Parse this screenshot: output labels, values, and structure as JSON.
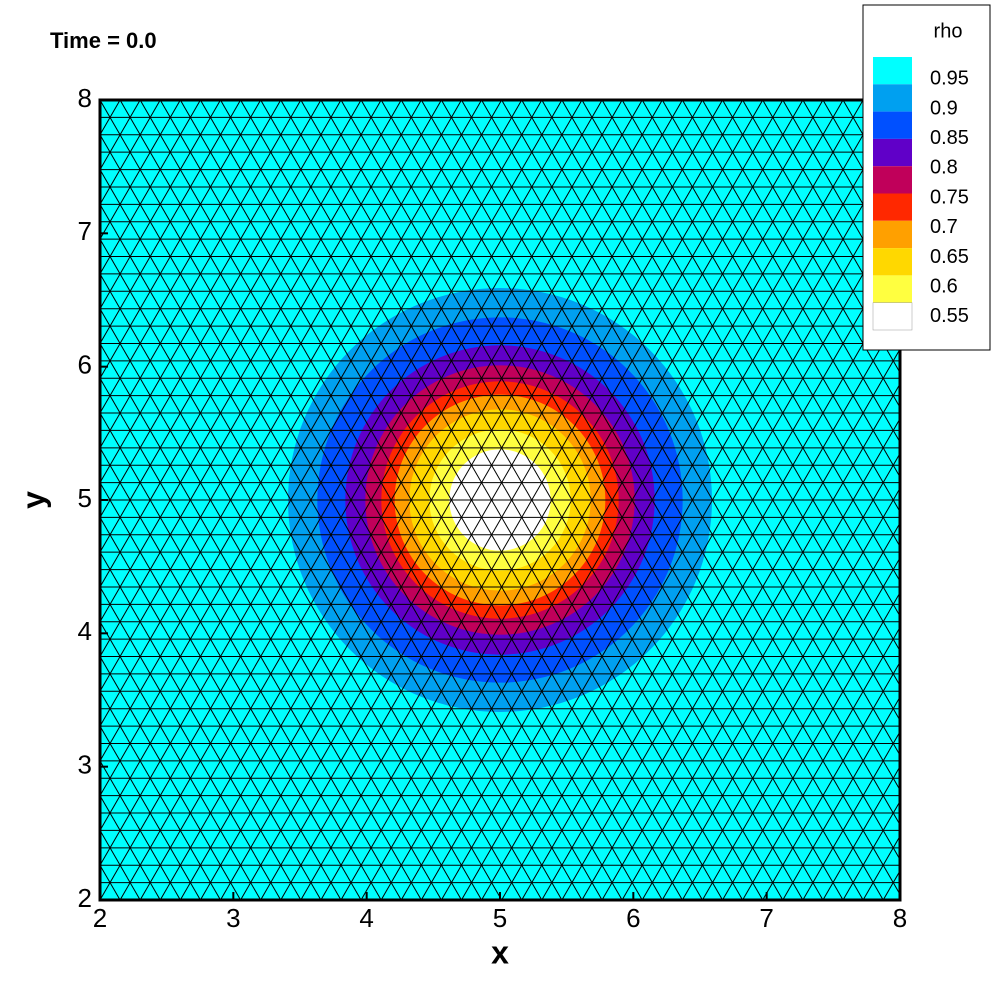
{
  "chart_data": {
    "type": "contour",
    "title": "Time = 0.0",
    "x_label": "x",
    "y_label": "y",
    "xlim": [
      2,
      8
    ],
    "ylim": [
      2,
      8
    ],
    "xticks": [
      2,
      3,
      4,
      5,
      6,
      7,
      8
    ],
    "yticks": [
      2,
      3,
      4,
      5,
      6,
      7,
      8
    ],
    "center": [
      5,
      5
    ],
    "legend_title": "rho",
    "levels": [
      {
        "value": 0.95,
        "label": "0.95"
      },
      {
        "value": 0.9,
        "label": "0.9"
      },
      {
        "value": 0.85,
        "label": "0.85"
      },
      {
        "value": 0.8,
        "label": "0.8"
      },
      {
        "value": 0.75,
        "label": "0.75"
      },
      {
        "value": 0.7,
        "label": "0.7"
      },
      {
        "value": 0.65,
        "label": "0.65"
      },
      {
        "value": 0.6,
        "label": "0.6"
      },
      {
        "value": 0.55,
        "label": "0.55"
      }
    ],
    "colors": [
      "#00ffff",
      "#00a0f0",
      "#0050ff",
      "#6000c8",
      "#c0005a",
      "#ff2800",
      "#ffa000",
      "#ffd800",
      "#ffff40",
      "#ffffff"
    ],
    "radii": [
      1.59,
      1.37,
      1.16,
      1.01,
      0.89,
      0.79,
      0.68,
      0.53,
      0.38
    ],
    "mesh": true
  }
}
